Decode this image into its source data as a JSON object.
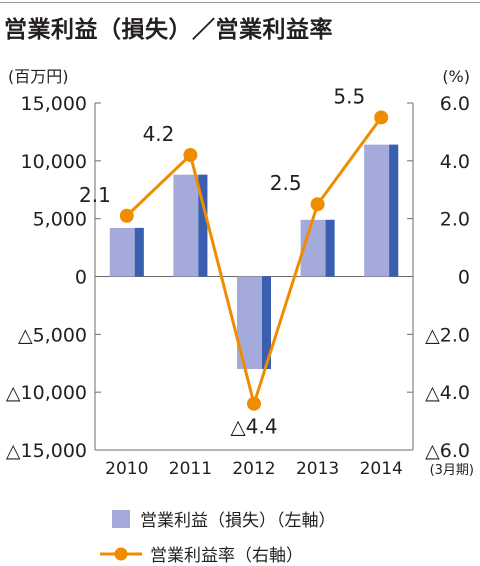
{
  "title": "営業利益（損失）／営業利益率",
  "chart_data": {
    "type": "bar+line",
    "categories": [
      "2010",
      "2011",
      "2012",
      "2013",
      "2014"
    ],
    "x_suffix": "(3月期)",
    "left_axis": {
      "unit": "(百万円)",
      "range": [
        -15000,
        15000
      ],
      "ticks": [
        15000,
        10000,
        5000,
        0,
        -5000,
        -10000,
        -15000
      ],
      "tick_labels": [
        "15,000",
        "10,000",
        "5,000",
        "0",
        "△5,000",
        "△10,000",
        "△15,000"
      ]
    },
    "right_axis": {
      "unit": "(%)",
      "range": [
        -6,
        6
      ],
      "ticks": [
        6,
        4,
        2,
        0,
        -2,
        -4,
        -6
      ],
      "tick_labels": [
        "6.0",
        "4.0",
        "2.0",
        "0",
        "△2.0",
        "△4.0",
        "△6.0"
      ]
    },
    "series": [
      {
        "name": "営業利益（損失）（左軸）",
        "type": "bar",
        "axis": "left",
        "values": [
          4200,
          8800,
          -8000,
          4900,
          11400
        ],
        "color": "#a4abda",
        "shade_color": "#3a5fb0"
      },
      {
        "name": "営業利益率（右軸）",
        "type": "line",
        "axis": "right",
        "values": [
          2.1,
          4.2,
          -4.4,
          2.5,
          5.5
        ],
        "data_labels": [
          "2.1",
          "4.2",
          "△4.4",
          "2.5",
          "5.5"
        ],
        "color": "#f08c00"
      }
    ],
    "grid": false
  }
}
